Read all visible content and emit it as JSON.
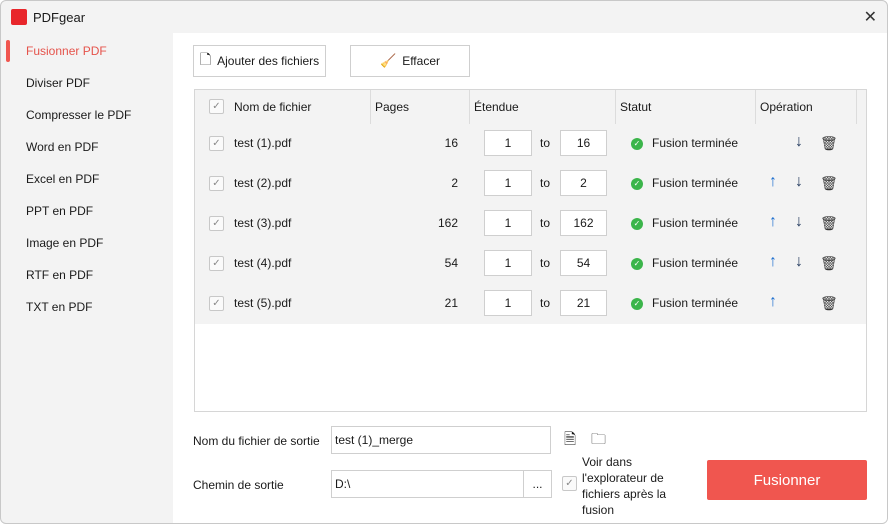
{
  "app": {
    "title": "PDFgear",
    "logo_text": "PDF",
    "accent": "#f0564f"
  },
  "sidebar": {
    "items": [
      {
        "label": "Fusionner PDF",
        "active": true
      },
      {
        "label": "Diviser PDF"
      },
      {
        "label": "Compresser le PDF"
      },
      {
        "label": "Word en PDF"
      },
      {
        "label": "Excel en PDF"
      },
      {
        "label": "PPT en PDF"
      },
      {
        "label": "Image en PDF"
      },
      {
        "label": "RTF en PDF"
      },
      {
        "label": "TXT en PDF"
      }
    ]
  },
  "toolbar": {
    "add_label": "Ajouter des fichiers",
    "clear_label": "Effacer"
  },
  "table": {
    "headers": {
      "name": "Nom de fichier",
      "pages": "Pages",
      "range": "Étendue",
      "status": "Statut",
      "operation": "Opération"
    },
    "to_label": "to",
    "rows": [
      {
        "name": "test (1).pdf",
        "pages": "16",
        "from": "1",
        "to": "16",
        "status": "Fusion terminée",
        "up": false,
        "down": true
      },
      {
        "name": "test (2).pdf",
        "pages": "2",
        "from": "1",
        "to": "2",
        "status": "Fusion terminée",
        "up": true,
        "down": true
      },
      {
        "name": "test (3).pdf",
        "pages": "162",
        "from": "1",
        "to": "162",
        "status": "Fusion terminée",
        "up": true,
        "down": true
      },
      {
        "name": "test (4).pdf",
        "pages": "54",
        "from": "1",
        "to": "54",
        "status": "Fusion terminée",
        "up": true,
        "down": true
      },
      {
        "name": "test (5).pdf",
        "pages": "21",
        "from": "1",
        "to": "21",
        "status": "Fusion terminée",
        "up": true,
        "down": false
      }
    ]
  },
  "output": {
    "filename_label": "Nom du fichier de sortie",
    "filename_value": "test (1)_merge",
    "path_label": "Chemin de sortie",
    "path_value": "D:\\",
    "browse_label": "...",
    "open_explorer_label": "Voir dans l'explorateur de fichiers après la fusion",
    "merge_label": "Fusionner"
  }
}
